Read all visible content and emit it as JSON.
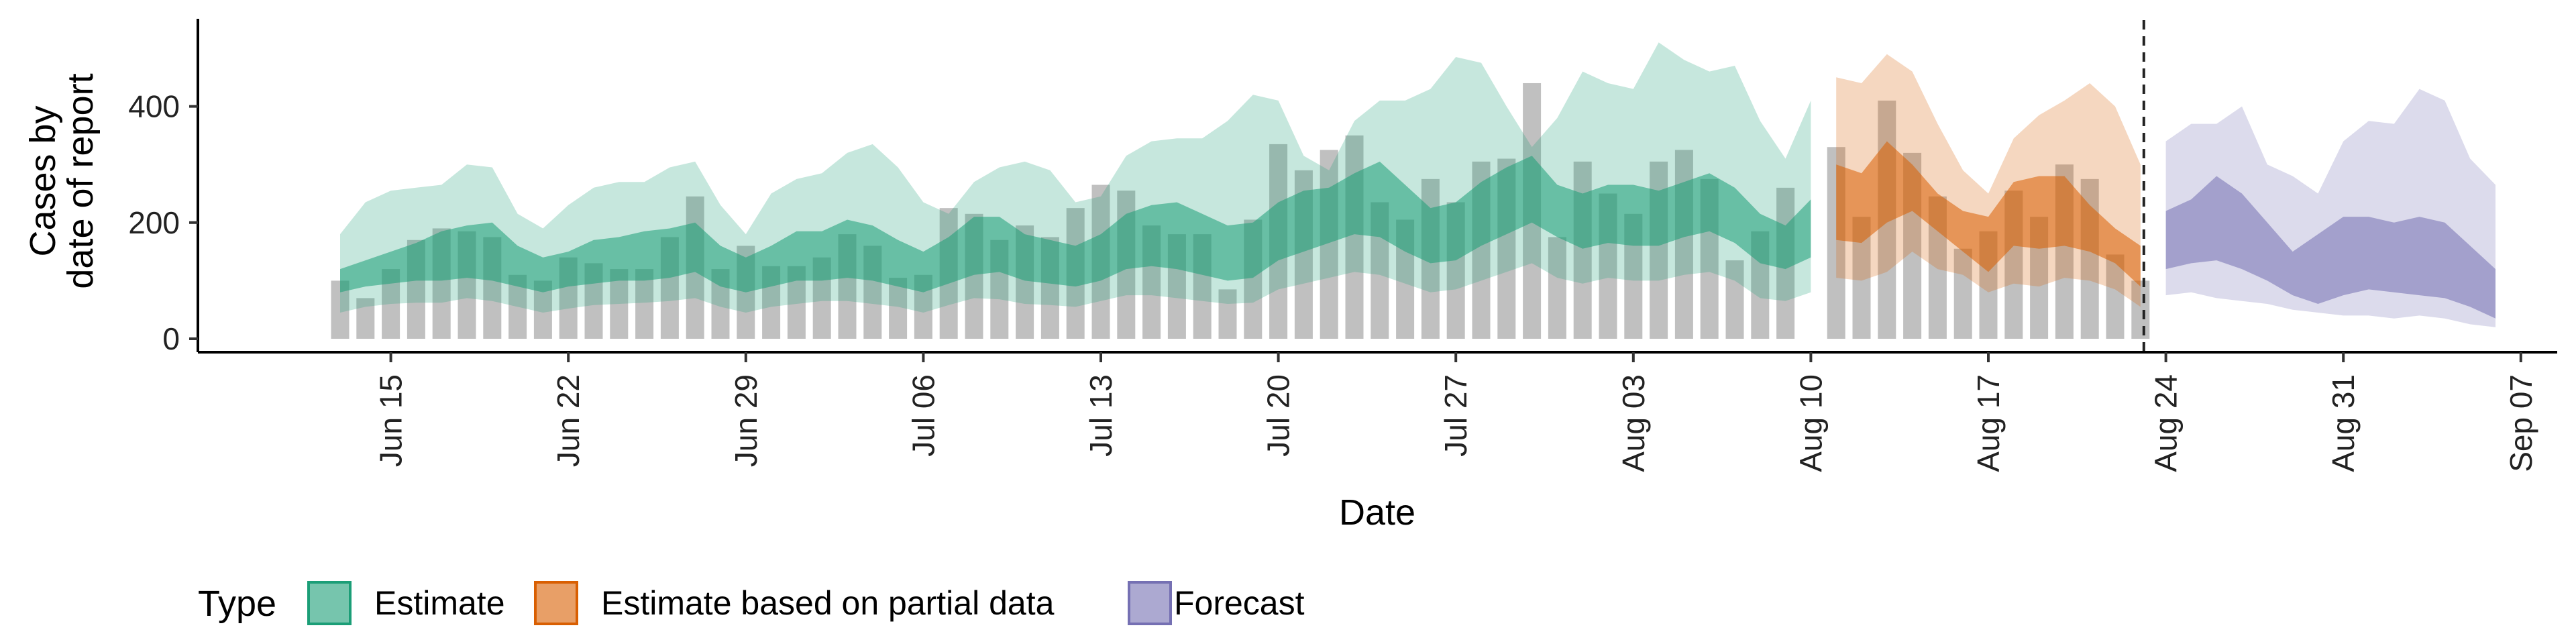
{
  "chart_data": {
    "type": "area",
    "xlabel": "Date",
    "ylabel_lines": [
      "Cases by",
      "date of report"
    ],
    "x_tick_labels": [
      "Jun 15",
      "Jun 22",
      "Jun 29",
      "Jul 06",
      "Jul 13",
      "Jul 20",
      "Jul 27",
      "Aug 03",
      "Aug 10",
      "Aug 17",
      "Aug 24",
      "Aug 31",
      "Sep 07"
    ],
    "y_ticks": [
      0,
      200,
      400
    ],
    "ylim": [
      -30,
      555
    ],
    "x_start_day": "Jun 13",
    "forecast_line_day": "Aug 23",
    "legend": {
      "title": "Type",
      "position": "bottom",
      "items": [
        {
          "label": "Estimate",
          "color": "#1b9e77"
        },
        {
          "label": "Estimate based on partial data",
          "color": "#d95f02"
        },
        {
          "label": "Forecast",
          "color": "#7570b3"
        }
      ]
    },
    "reported_cases": [
      {
        "date": "Jun 13",
        "value": 100
      },
      {
        "date": "Jun 14",
        "value": 70
      },
      {
        "date": "Jun 15",
        "value": 120
      },
      {
        "date": "Jun 16",
        "value": 170
      },
      {
        "date": "Jun 17",
        "value": 190
      },
      {
        "date": "Jun 18",
        "value": 185
      },
      {
        "date": "Jun 19",
        "value": 175
      },
      {
        "date": "Jun 20",
        "value": 110
      },
      {
        "date": "Jun 21",
        "value": 100
      },
      {
        "date": "Jun 22",
        "value": 140
      },
      {
        "date": "Jun 23",
        "value": 130
      },
      {
        "date": "Jun 24",
        "value": 120
      },
      {
        "date": "Jun 25",
        "value": 120
      },
      {
        "date": "Jun 26",
        "value": 175
      },
      {
        "date": "Jun 27",
        "value": 245
      },
      {
        "date": "Jun 28",
        "value": 120
      },
      {
        "date": "Jun 29",
        "value": 160
      },
      {
        "date": "Jun 30",
        "value": 125
      },
      {
        "date": "Jul 01",
        "value": 125
      },
      {
        "date": "Jul 02",
        "value": 140
      },
      {
        "date": "Jul 03",
        "value": 180
      },
      {
        "date": "Jul 04",
        "value": 160
      },
      {
        "date": "Jul 05",
        "value": 105
      },
      {
        "date": "Jul 06",
        "value": 110
      },
      {
        "date": "Jul 07",
        "value": 225
      },
      {
        "date": "Jul 08",
        "value": 215
      },
      {
        "date": "Jul 09",
        "value": 170
      },
      {
        "date": "Jul 10",
        "value": 195
      },
      {
        "date": "Jul 11",
        "value": 175
      },
      {
        "date": "Jul 12",
        "value": 225
      },
      {
        "date": "Jul 13",
        "value": 265
      },
      {
        "date": "Jul 14",
        "value": 255
      },
      {
        "date": "Jul 15",
        "value": 195
      },
      {
        "date": "Jul 16",
        "value": 180
      },
      {
        "date": "Jul 17",
        "value": 180
      },
      {
        "date": "Jul 18",
        "value": 85
      },
      {
        "date": "Jul 19",
        "value": 205
      },
      {
        "date": "Jul 20",
        "value": 335
      },
      {
        "date": "Jul 21",
        "value": 290
      },
      {
        "date": "Jul 22",
        "value": 325
      },
      {
        "date": "Jul 23",
        "value": 350
      },
      {
        "date": "Jul 24",
        "value": 235
      },
      {
        "date": "Jul 25",
        "value": 205
      },
      {
        "date": "Jul 26",
        "value": 275
      },
      {
        "date": "Jul 27",
        "value": 235
      },
      {
        "date": "Jul 28",
        "value": 305
      },
      {
        "date": "Jul 29",
        "value": 310
      },
      {
        "date": "Jul 30",
        "value": 440
      },
      {
        "date": "Jul 31",
        "value": 175
      },
      {
        "date": "Aug 01",
        "value": 305
      },
      {
        "date": "Aug 02",
        "value": 250
      },
      {
        "date": "Aug 03",
        "value": 215
      },
      {
        "date": "Aug 04",
        "value": 305
      },
      {
        "date": "Aug 05",
        "value": 325
      },
      {
        "date": "Aug 06",
        "value": 275
      },
      {
        "date": "Aug 07",
        "value": 135
      },
      {
        "date": "Aug 08",
        "value": 185
      },
      {
        "date": "Aug 09",
        "value": 260
      },
      {
        "date": "Aug 10",
        "value": 0
      },
      {
        "date": "Aug 11",
        "value": 330
      },
      {
        "date": "Aug 12",
        "value": 210
      },
      {
        "date": "Aug 13",
        "value": 410
      },
      {
        "date": "Aug 14",
        "value": 320
      },
      {
        "date": "Aug 15",
        "value": 245
      },
      {
        "date": "Aug 16",
        "value": 155
      },
      {
        "date": "Aug 17",
        "value": 185
      },
      {
        "date": "Aug 18",
        "value": 255
      },
      {
        "date": "Aug 19",
        "value": 210
      },
      {
        "date": "Aug 20",
        "value": 300
      },
      {
        "date": "Aug 21",
        "value": 275
      },
      {
        "date": "Aug 22",
        "value": 145
      },
      {
        "date": "Aug 23",
        "value": 100
      }
    ],
    "series": [
      {
        "name": "Estimate",
        "x": [
          "Jun 13",
          "Jun 14",
          "Jun 15",
          "Jun 16",
          "Jun 17",
          "Jun 18",
          "Jun 19",
          "Jun 20",
          "Jun 21",
          "Jun 22",
          "Jun 23",
          "Jun 24",
          "Jun 25",
          "Jun 26",
          "Jun 27",
          "Jun 28",
          "Jun 29",
          "Jun 30",
          "Jul 01",
          "Jul 02",
          "Jul 03",
          "Jul 04",
          "Jul 05",
          "Jul 06",
          "Jul 07",
          "Jul 08",
          "Jul 09",
          "Jul 10",
          "Jul 11",
          "Jul 12",
          "Jul 13",
          "Jul 14",
          "Jul 15",
          "Jul 16",
          "Jul 17",
          "Jul 18",
          "Jul 19",
          "Jul 20",
          "Jul 21",
          "Jul 22",
          "Jul 23",
          "Jul 24",
          "Jul 25",
          "Jul 26",
          "Jul 27",
          "Jul 28",
          "Jul 29",
          "Jul 30",
          "Jul 31",
          "Aug 01",
          "Aug 02",
          "Aug 03",
          "Aug 04",
          "Aug 05",
          "Aug 06",
          "Aug 07",
          "Aug 08",
          "Aug 09",
          "Aug 10"
        ],
        "lower_90": [
          45,
          55,
          60,
          62,
          62,
          70,
          65,
          55,
          45,
          52,
          58,
          60,
          62,
          65,
          70,
          55,
          45,
          55,
          60,
          65,
          65,
          60,
          55,
          45,
          58,
          70,
          68,
          60,
          58,
          55,
          65,
          75,
          75,
          70,
          65,
          60,
          62,
          85,
          95,
          105,
          115,
          110,
          95,
          80,
          85,
          100,
          115,
          130,
          105,
          95,
          105,
          100,
          100,
          110,
          115,
          100,
          70,
          65,
          80
        ],
        "lower_50": [
          80,
          90,
          95,
          100,
          100,
          105,
          100,
          90,
          80,
          90,
          95,
          100,
          100,
          105,
          115,
          90,
          80,
          90,
          100,
          100,
          105,
          100,
          90,
          80,
          95,
          110,
          115,
          100,
          95,
          90,
          100,
          120,
          125,
          120,
          110,
          100,
          105,
          135,
          150,
          165,
          180,
          175,
          150,
          130,
          135,
          160,
          180,
          200,
          175,
          155,
          165,
          160,
          160,
          175,
          185,
          165,
          130,
          120,
          140
        ],
        "upper_50": [
          120,
          135,
          150,
          165,
          185,
          195,
          200,
          160,
          140,
          150,
          170,
          175,
          185,
          190,
          200,
          160,
          140,
          160,
          185,
          185,
          205,
          195,
          170,
          150,
          175,
          210,
          210,
          180,
          170,
          160,
          180,
          215,
          230,
          235,
          215,
          195,
          200,
          235,
          255,
          260,
          285,
          305,
          265,
          225,
          235,
          270,
          295,
          315,
          265,
          250,
          265,
          265,
          255,
          270,
          285,
          260,
          215,
          195,
          240
        ],
        "upper_90": [
          180,
          235,
          255,
          260,
          265,
          300,
          295,
          215,
          190,
          230,
          260,
          270,
          270,
          295,
          305,
          230,
          180,
          250,
          275,
          285,
          320,
          335,
          295,
          235,
          215,
          270,
          295,
          305,
          290,
          235,
          245,
          315,
          340,
          345,
          345,
          375,
          420,
          410,
          315,
          290,
          375,
          410,
          410,
          430,
          485,
          475,
          400,
          330,
          380,
          460,
          440,
          430,
          510,
          480,
          460,
          470,
          375,
          310,
          410
        ]
      },
      {
        "name": "Estimate based on partial data",
        "x": [
          "Aug 11",
          "Aug 12",
          "Aug 13",
          "Aug 14",
          "Aug 15",
          "Aug 16",
          "Aug 17",
          "Aug 18",
          "Aug 19",
          "Aug 20",
          "Aug 21",
          "Aug 22",
          "Aug 23"
        ],
        "lower_90": [
          105,
          100,
          115,
          150,
          120,
          110,
          80,
          95,
          90,
          105,
          100,
          85,
          55
        ],
        "lower_50": [
          170,
          165,
          200,
          220,
          185,
          150,
          115,
          160,
          155,
          160,
          150,
          130,
          90
        ],
        "upper_50": [
          300,
          285,
          340,
          300,
          250,
          220,
          210,
          270,
          280,
          280,
          230,
          190,
          160
        ],
        "upper_90": [
          450,
          440,
          490,
          460,
          370,
          290,
          250,
          345,
          385,
          410,
          440,
          400,
          300
        ]
      },
      {
        "name": "Forecast",
        "x": [
          "Aug 24",
          "Aug 25",
          "Aug 26",
          "Aug 27",
          "Aug 28",
          "Aug 29",
          "Aug 30",
          "Aug 31",
          "Sep 01",
          "Sep 02",
          "Sep 03",
          "Sep 04",
          "Sep 05",
          "Sep 06"
        ],
        "lower_90": [
          75,
          80,
          70,
          65,
          60,
          50,
          45,
          40,
          40,
          35,
          40,
          35,
          25,
          20
        ],
        "lower_50": [
          120,
          130,
          135,
          120,
          100,
          75,
          60,
          75,
          85,
          80,
          75,
          70,
          55,
          35
        ],
        "upper_50": [
          220,
          240,
          280,
          250,
          200,
          150,
          180,
          210,
          210,
          200,
          210,
          200,
          160,
          120
        ],
        "upper_90": [
          340,
          370,
          370,
          400,
          300,
          280,
          250,
          340,
          375,
          370,
          430,
          410,
          310,
          265
        ]
      }
    ]
  }
}
